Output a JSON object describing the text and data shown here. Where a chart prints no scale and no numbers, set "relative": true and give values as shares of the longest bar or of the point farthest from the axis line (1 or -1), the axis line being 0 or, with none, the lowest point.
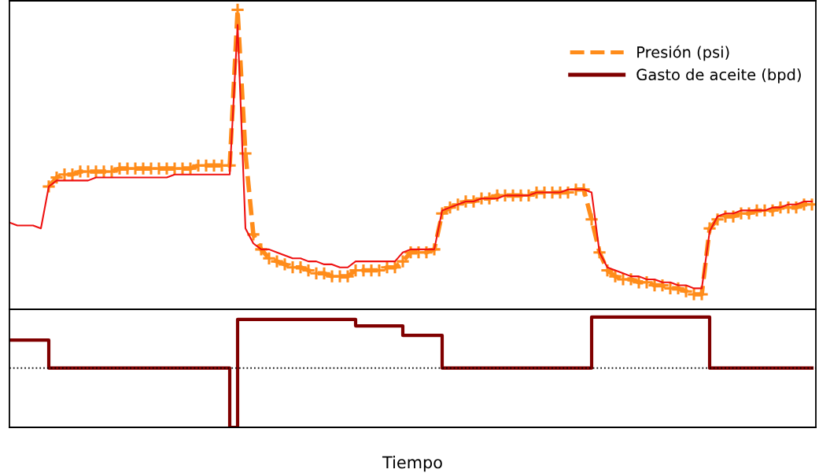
{
  "chart_data": [
    {
      "type": "line",
      "relative": true,
      "tick_labels": false,
      "legend": "top right",
      "categories": [
        null,
        null,
        null,
        null,
        null,
        null,
        null,
        null,
        null,
        null,
        null,
        null,
        null,
        null,
        null,
        null,
        null,
        null,
        null,
        null,
        null,
        null,
        null,
        null,
        null,
        null,
        null,
        null,
        null,
        null,
        null,
        null,
        null,
        null,
        null,
        null,
        null,
        null,
        null,
        null,
        null,
        null,
        null,
        null,
        null,
        null,
        null,
        null,
        null,
        null,
        null,
        null,
        null,
        null,
        null,
        null,
        null,
        null,
        null,
        null,
        null,
        null,
        null,
        null,
        null,
        null,
        null,
        null,
        null,
        null,
        null,
        null,
        null,
        null,
        null,
        null,
        null,
        null,
        null,
        null,
        null,
        null,
        null,
        null,
        null,
        null,
        null,
        null,
        null,
        null,
        null,
        null,
        null,
        null,
        null,
        null,
        null,
        null,
        null,
        null,
        null,
        null,
        null
      ],
      "series": [
        {
          "name": "Presión (psi)",
          "marker": "cross",
          "line_style": "dashed",
          "color": "#ff8c1a",
          "values": [
            null,
            null,
            null,
            null,
            null,
            0.41,
            0.44,
            0.45,
            0.45,
            0.46,
            0.46,
            0.46,
            0.46,
            0.46,
            0.47,
            0.47,
            0.47,
            0.47,
            0.47,
            0.47,
            0.47,
            0.47,
            0.47,
            0.47,
            0.48,
            0.48,
            0.48,
            0.48,
            0.48,
            1.0,
            0.52,
            0.25,
            0.2,
            0.17,
            0.16,
            0.15,
            0.14,
            0.14,
            0.13,
            0.12,
            0.12,
            0.11,
            0.11,
            0.11,
            0.13,
            0.13,
            0.13,
            0.13,
            0.14,
            0.14,
            0.16,
            0.19,
            0.19,
            0.19,
            0.2,
            0.32,
            0.34,
            0.35,
            0.36,
            0.36,
            0.37,
            0.37,
            0.38,
            0.38,
            0.38,
            0.38,
            0.38,
            0.39,
            0.39,
            0.39,
            0.39,
            0.39,
            0.4,
            0.4,
            0.3,
            0.19,
            0.13,
            0.11,
            0.1,
            0.1,
            0.09,
            0.09,
            0.08,
            0.08,
            0.07,
            0.07,
            0.06,
            0.05,
            0.05,
            0.27,
            0.3,
            0.31,
            0.31,
            0.32,
            0.32,
            0.33,
            0.33,
            0.33,
            0.34,
            0.34,
            0.34,
            0.35,
            0.35
          ]
        },
        {
          "marker": "none",
          "line_style": "solid",
          "color": "#ee1111",
          "values": [
            0.29,
            0.28,
            0.28,
            0.28,
            0.27,
            0.41,
            0.43,
            0.43,
            0.43,
            0.43,
            0.43,
            0.44,
            0.44,
            0.44,
            0.44,
            0.44,
            0.44,
            0.44,
            0.44,
            0.44,
            0.44,
            0.45,
            0.45,
            0.45,
            0.45,
            0.45,
            0.45,
            0.45,
            0.45,
            0.95,
            0.27,
            0.22,
            0.2,
            0.2,
            0.19,
            0.18,
            0.17,
            0.17,
            0.16,
            0.16,
            0.15,
            0.15,
            0.14,
            0.14,
            0.16,
            0.16,
            0.16,
            0.16,
            0.16,
            0.16,
            0.19,
            0.2,
            0.2,
            0.2,
            0.2,
            0.33,
            0.34,
            0.35,
            0.36,
            0.36,
            0.37,
            0.37,
            0.37,
            0.38,
            0.38,
            0.38,
            0.38,
            0.39,
            0.39,
            0.39,
            0.39,
            0.4,
            0.4,
            0.4,
            0.39,
            0.19,
            0.14,
            0.13,
            0.12,
            0.11,
            0.11,
            0.1,
            0.1,
            0.09,
            0.09,
            0.08,
            0.08,
            0.07,
            0.07,
            0.26,
            0.31,
            0.32,
            0.32,
            0.33,
            0.33,
            0.33,
            0.33,
            0.34,
            0.34,
            0.35,
            0.35,
            0.36,
            0.36
          ]
        }
      ]
    },
    {
      "type": "step",
      "relative": true,
      "tick_labels": false,
      "xlabel": "Tiempo",
      "categories": [
        null,
        null,
        null,
        null,
        null,
        null,
        null,
        null,
        null,
        null,
        null,
        null,
        null,
        null,
        null,
        null,
        null,
        null,
        null,
        null,
        null,
        null,
        null,
        null,
        null,
        null,
        null,
        null,
        null,
        null,
        null,
        null,
        null,
        null,
        null,
        null,
        null,
        null,
        null,
        null,
        null,
        null,
        null,
        null,
        null,
        null,
        null,
        null,
        null,
        null,
        null,
        null,
        null,
        null,
        null,
        null,
        null,
        null,
        null,
        null,
        null,
        null,
        null,
        null,
        null,
        null,
        null,
        null,
        null,
        null,
        null,
        null,
        null,
        null,
        null,
        null,
        null,
        null,
        null,
        null,
        null,
        null,
        null,
        null,
        null,
        null,
        null,
        null,
        null,
        null,
        null,
        null,
        null,
        null,
        null,
        null,
        null,
        null,
        null,
        null,
        null,
        null,
        null
      ],
      "ref_lines": [
        {
          "axis": "y",
          "value": 0,
          "line_style": "dotted",
          "color": "#000000"
        }
      ],
      "series": [
        {
          "name": "Gasto de aceite (bpd)",
          "line_style": "solid",
          "color": "#800000",
          "values": [
            0.47,
            0.47,
            0.47,
            0.47,
            0.47,
            0,
            0,
            0,
            0,
            0,
            0,
            0,
            0,
            0,
            0,
            0,
            0,
            0,
            0,
            0,
            0,
            0,
            0,
            0,
            0,
            0,
            0,
            0,
            -1,
            0.82,
            0.82,
            0.82,
            0.82,
            0.82,
            0.82,
            0.82,
            0.82,
            0.82,
            0.82,
            0.82,
            0.82,
            0.82,
            0.82,
            0.82,
            0.71,
            0.71,
            0.71,
            0.71,
            0.71,
            0.71,
            0.55,
            0.55,
            0.55,
            0.55,
            0.55,
            0,
            0,
            0,
            0,
            0,
            0,
            0,
            0,
            0,
            0,
            0,
            0,
            0,
            0,
            0,
            0,
            0,
            0,
            0,
            0.86,
            0.86,
            0.86,
            0.86,
            0.86,
            0.86,
            0.86,
            0.86,
            0.86,
            0.86,
            0.86,
            0.86,
            0.86,
            0.86,
            0.86,
            0,
            0,
            0,
            0,
            0,
            0,
            0,
            0,
            0,
            0,
            0,
            0,
            0,
            0
          ]
        }
      ]
    }
  ]
}
